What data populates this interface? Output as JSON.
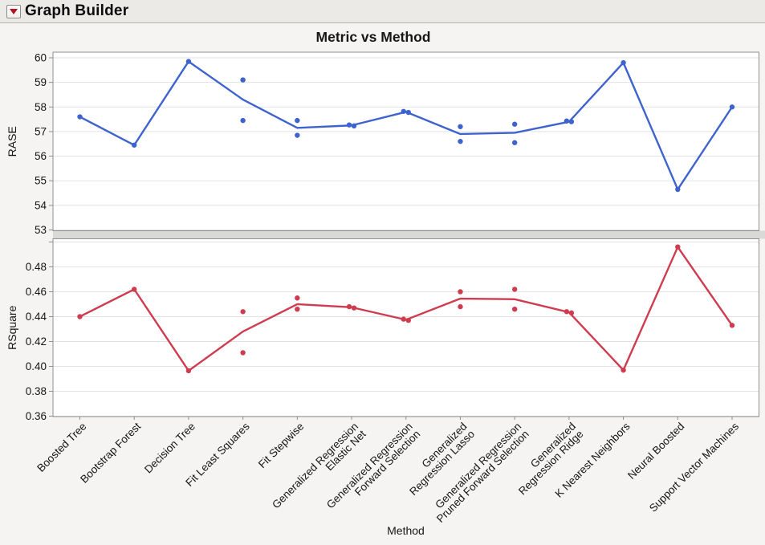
{
  "header": {
    "title": "Graph Builder",
    "disclosure_icon": "red-triangle-down"
  },
  "colors": {
    "rase_line": "#3E63CE",
    "rsquare_line": "#CF3C50",
    "panel_background": "#ffffff",
    "page_background": "#f5f4f2",
    "titlebar_background": "#ebeae7",
    "gridline": "#e2e2e2",
    "frame": "#8f8f8f",
    "divider_band": "#d9d9d7",
    "text": "#161616"
  },
  "chart_data": {
    "type": "line",
    "title": "Metric vs Method",
    "xlabel": "Method",
    "legend_position": "none",
    "grid": true,
    "categories": [
      {
        "label_lines": [
          "Boosted Tree"
        ]
      },
      {
        "label_lines": [
          "Bootstrap Forest"
        ]
      },
      {
        "label_lines": [
          "Decision Tree"
        ]
      },
      {
        "label_lines": [
          "Fit Least Squares"
        ]
      },
      {
        "label_lines": [
          "Fit Stepwise"
        ]
      },
      {
        "label_lines": [
          "Generalized Regression",
          "Elastic Net"
        ]
      },
      {
        "label_lines": [
          "Generalized Regression",
          "Forward Selection"
        ]
      },
      {
        "label_lines": [
          "Generalized",
          "Regression Lasso"
        ]
      },
      {
        "label_lines": [
          "Generalized Regression",
          "Pruned Forward Selection"
        ]
      },
      {
        "label_lines": [
          "Generalized",
          "Regression Ridge"
        ]
      },
      {
        "label_lines": [
          "K Nearest Neighbors"
        ]
      },
      {
        "label_lines": [
          "Neural Boosted"
        ]
      },
      {
        "label_lines": [
          "Support Vector Machines"
        ]
      }
    ],
    "panels": [
      {
        "ylabel": "RASE",
        "ylim": [
          52.967,
          60.228
        ],
        "ytick_values": [
          53,
          54,
          55,
          56,
          57,
          58,
          59,
          60
        ],
        "ytick_labels": [
          "53",
          "54",
          "55",
          "56",
          "57",
          "58",
          "59",
          "60"
        ],
        "extra_gridlines": [],
        "color": "#3E63CE",
        "series_name": "RASE",
        "line_values": [
          57.6,
          56.45,
          59.85,
          58.3,
          57.15,
          57.25,
          57.8,
          56.9,
          56.95,
          57.4,
          59.8,
          54.65,
          58.0
        ],
        "points": [
          [
            57.6
          ],
          [
            56.45
          ],
          [
            59.85
          ],
          [
            59.1,
            57.45
          ],
          [
            57.45,
            56.85
          ],
          [
            57.27,
            57.23
          ],
          [
            57.82,
            57.78
          ],
          [
            57.2,
            56.6
          ],
          [
            57.3,
            56.55
          ],
          [
            57.43,
            57.4
          ],
          [
            59.8
          ],
          [
            54.65
          ],
          [
            58.0
          ]
        ]
      },
      {
        "ylabel": "RSquare",
        "ylim": [
          0.35966,
          0.50258
        ],
        "ytick_values": [
          0.36,
          0.38,
          0.4,
          0.42,
          0.44,
          0.46,
          0.48
        ],
        "ytick_labels": [
          "0.36",
          "0.38",
          "0.40",
          "0.42",
          "0.44",
          "0.46",
          "0.48"
        ],
        "extra_gridlines": [
          0.5
        ],
        "color": "#CF3C50",
        "series_name": "RSquare",
        "line_values": [
          0.44,
          0.462,
          0.3965,
          0.428,
          0.45,
          0.4475,
          0.4375,
          0.4545,
          0.454,
          0.4435,
          0.397,
          0.496,
          0.433
        ],
        "points": [
          [
            0.44
          ],
          [
            0.462
          ],
          [
            0.3965
          ],
          [
            0.444,
            0.411
          ],
          [
            0.455,
            0.446
          ],
          [
            0.448,
            0.447
          ],
          [
            0.438,
            0.437
          ],
          [
            0.46,
            0.448
          ],
          [
            0.462,
            0.446
          ],
          [
            0.444,
            0.443
          ],
          [
            0.397
          ],
          [
            0.496
          ],
          [
            0.433
          ]
        ]
      }
    ]
  }
}
